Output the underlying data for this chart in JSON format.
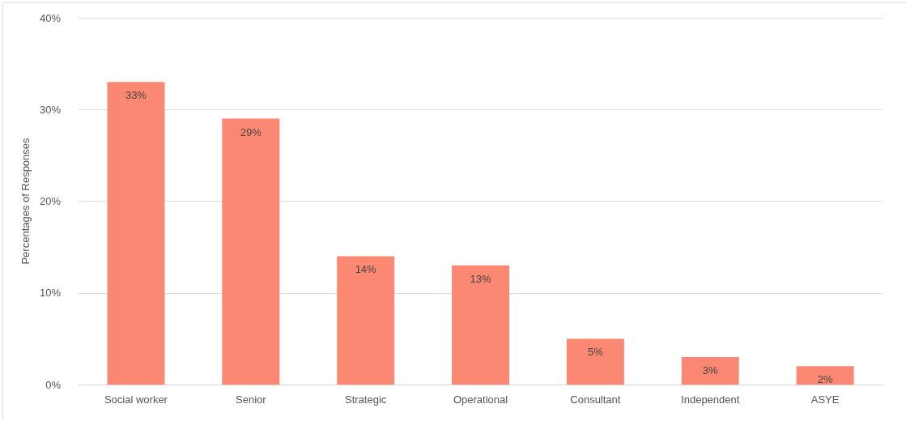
{
  "chart_data": {
    "type": "bar",
    "ylabel": "Percentages of Responses",
    "categories": [
      "Social worker",
      "Senior",
      "Strategic",
      "Operational",
      "Consultant",
      "Independent",
      "ASYE"
    ],
    "values": [
      33,
      29,
      14,
      13,
      5,
      3,
      2
    ],
    "value_labels": [
      "33%",
      "29%",
      "14%",
      "13%",
      "5%",
      "3%",
      "2%"
    ],
    "color": "#fb8872",
    "ylim": [
      0,
      40
    ],
    "yticks": [
      {
        "value": 0,
        "label": "0%"
      },
      {
        "value": 10,
        "label": "10%"
      },
      {
        "value": 20,
        "label": "20%"
      },
      {
        "value": 30,
        "label": "30%"
      },
      {
        "value": 40,
        "label": "40%"
      }
    ],
    "grid": "y"
  }
}
